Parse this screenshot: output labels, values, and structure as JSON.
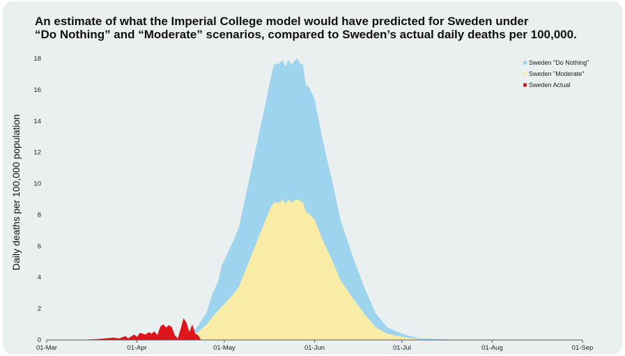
{
  "chart_data": {
    "type": "area",
    "title_lines": [
      "An estimate of what the Imperial College model would have predicted for Sweden under",
      "“Do Nothing” and “Moderate” scenarios, compared to Sweden’s actual daily deaths per 100,000."
    ],
    "xlabel": "",
    "ylabel": "Daily deaths per 100,000 population",
    "xlim": [
      "2020-03-01",
      "2020-09-01"
    ],
    "ylim": [
      0,
      18
    ],
    "x_ticks": [
      {
        "date": "2020-03-01",
        "label": "01-Mar"
      },
      {
        "date": "2020-04-01",
        "label": "01-Apr"
      },
      {
        "date": "2020-05-01",
        "label": "01-May"
      },
      {
        "date": "2020-06-01",
        "label": "01-Jun"
      },
      {
        "date": "2020-07-01",
        "label": "01-Jul"
      },
      {
        "date": "2020-08-01",
        "label": "01-Aug"
      },
      {
        "date": "2020-09-01",
        "label": "01-Sep"
      }
    ],
    "y_ticks": [
      0,
      2,
      4,
      6,
      8,
      10,
      12,
      14,
      16,
      18
    ],
    "grid": false,
    "legend_position": "top-right",
    "series": [
      {
        "name": "Sweden \"Do Nothing\"",
        "color": "#9fd4ef",
        "points": [
          [
            "2020-04-19",
            0.4
          ],
          [
            "2020-04-22",
            0.9
          ],
          [
            "2020-04-25",
            1.8
          ],
          [
            "2020-04-27",
            3.0
          ],
          [
            "2020-04-29",
            3.8
          ],
          [
            "2020-04-30",
            4.7
          ],
          [
            "2020-05-02",
            5.5
          ],
          [
            "2020-05-04",
            6.3
          ],
          [
            "2020-05-06",
            7.2
          ],
          [
            "2020-05-09",
            9.8
          ],
          [
            "2020-05-12",
            12.4
          ],
          [
            "2020-05-15",
            15.0
          ],
          [
            "2020-05-17",
            16.8
          ],
          [
            "2020-05-18",
            17.6
          ],
          [
            "2020-05-20",
            17.7
          ],
          [
            "2020-05-21",
            17.9
          ],
          [
            "2020-05-22",
            17.5
          ],
          [
            "2020-05-23",
            17.9
          ],
          [
            "2020-05-24",
            17.6
          ],
          [
            "2020-05-26",
            18.0
          ],
          [
            "2020-05-27",
            17.7
          ],
          [
            "2020-05-28",
            17.6
          ],
          [
            "2020-05-29",
            16.3
          ],
          [
            "2020-05-30",
            16.2
          ],
          [
            "2020-06-01",
            15.4
          ],
          [
            "2020-06-04",
            12.6
          ],
          [
            "2020-06-07",
            10.2
          ],
          [
            "2020-06-10",
            7.6
          ],
          [
            "2020-06-14",
            5.4
          ],
          [
            "2020-06-18",
            3.4
          ],
          [
            "2020-06-22",
            1.7
          ],
          [
            "2020-06-26",
            0.8
          ],
          [
            "2020-07-01",
            0.4
          ],
          [
            "2020-07-07",
            0.1
          ],
          [
            "2020-07-20",
            0.0
          ]
        ]
      },
      {
        "name": "Sweden \"Moderate\"",
        "color": "#f9eca7",
        "points": [
          [
            "2020-04-19",
            0.2
          ],
          [
            "2020-04-22",
            0.5
          ],
          [
            "2020-04-25",
            1.0
          ],
          [
            "2020-04-27",
            1.5
          ],
          [
            "2020-04-29",
            1.9
          ],
          [
            "2020-05-02",
            2.5
          ],
          [
            "2020-05-04",
            2.9
          ],
          [
            "2020-05-06",
            3.4
          ],
          [
            "2020-05-09",
            4.8
          ],
          [
            "2020-05-12",
            6.2
          ],
          [
            "2020-05-15",
            7.6
          ],
          [
            "2020-05-17",
            8.5
          ],
          [
            "2020-05-18",
            8.8
          ],
          [
            "2020-05-20",
            8.8
          ],
          [
            "2020-05-21",
            9.0
          ],
          [
            "2020-05-22",
            8.7
          ],
          [
            "2020-05-23",
            9.0
          ],
          [
            "2020-05-24",
            8.8
          ],
          [
            "2020-05-26",
            9.0
          ],
          [
            "2020-05-27",
            8.9
          ],
          [
            "2020-05-28",
            8.8
          ],
          [
            "2020-05-29",
            8.2
          ],
          [
            "2020-05-30",
            8.1
          ],
          [
            "2020-06-01",
            7.7
          ],
          [
            "2020-06-04",
            6.3
          ],
          [
            "2020-06-07",
            5.1
          ],
          [
            "2020-06-10",
            3.8
          ],
          [
            "2020-06-14",
            2.7
          ],
          [
            "2020-06-18",
            1.7
          ],
          [
            "2020-06-22",
            0.8
          ],
          [
            "2020-06-26",
            0.4
          ],
          [
            "2020-07-01",
            0.2
          ],
          [
            "2020-07-07",
            0.05
          ],
          [
            "2020-07-20",
            0.0
          ]
        ]
      },
      {
        "name": "Sweden Actual",
        "color": "#e0141b",
        "points": [
          [
            "2020-03-12",
            0.0
          ],
          [
            "2020-03-15",
            0.03
          ],
          [
            "2020-03-18",
            0.05
          ],
          [
            "2020-03-21",
            0.1
          ],
          [
            "2020-03-24",
            0.15
          ],
          [
            "2020-03-26",
            0.1
          ],
          [
            "2020-03-28",
            0.25
          ],
          [
            "2020-03-29",
            0.1
          ],
          [
            "2020-03-31",
            0.35
          ],
          [
            "2020-04-01",
            0.2
          ],
          [
            "2020-04-02",
            0.45
          ],
          [
            "2020-04-04",
            0.35
          ],
          [
            "2020-04-05",
            0.5
          ],
          [
            "2020-04-06",
            0.4
          ],
          [
            "2020-04-07",
            0.55
          ],
          [
            "2020-04-08",
            0.3
          ],
          [
            "2020-04-09",
            0.85
          ],
          [
            "2020-04-10",
            1.0
          ],
          [
            "2020-04-11",
            0.8
          ],
          [
            "2020-04-12",
            0.95
          ],
          [
            "2020-04-13",
            0.8
          ],
          [
            "2020-04-14",
            0.3
          ],
          [
            "2020-04-15",
            0.1
          ],
          [
            "2020-04-16",
            0.7
          ],
          [
            "2020-04-17",
            1.4
          ],
          [
            "2020-04-18",
            1.1
          ],
          [
            "2020-04-19",
            0.5
          ],
          [
            "2020-04-20",
            1.0
          ],
          [
            "2020-04-21",
            0.4
          ],
          [
            "2020-04-22",
            0.3
          ],
          [
            "2020-04-23",
            0.0
          ]
        ]
      }
    ]
  }
}
